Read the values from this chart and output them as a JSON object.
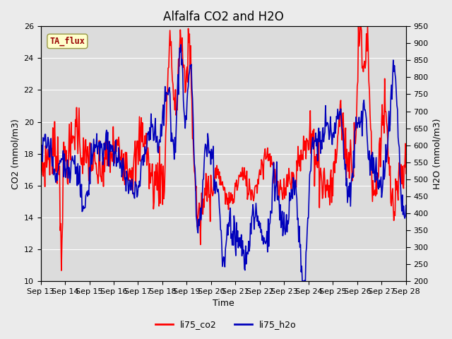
{
  "title": "Alfalfa CO2 and H2O",
  "xlabel": "Time",
  "ylabel_left": "CO2 (mmol/m3)",
  "ylabel_right": "H2O (mmol/m3)",
  "x_start": 13,
  "x_end": 28,
  "x_ticks": [
    13,
    14,
    15,
    16,
    17,
    18,
    19,
    20,
    21,
    22,
    23,
    24,
    25,
    26,
    27,
    28
  ],
  "x_tick_labels": [
    "Sep 13",
    "Sep 14",
    "Sep 15",
    "Sep 16",
    "Sep 17",
    "Sep 18",
    "Sep 19",
    "Sep 20",
    "Sep 21",
    "Sep 22",
    "Sep 23",
    "Sep 24",
    "Sep 25",
    "Sep 26",
    "Sep 27",
    "Sep 28"
  ],
  "ylim_left": [
    10,
    26
  ],
  "ylim_right": [
    200,
    950
  ],
  "yticks_left": [
    10,
    12,
    14,
    16,
    18,
    20,
    22,
    24,
    26
  ],
  "yticks_right": [
    200,
    250,
    300,
    350,
    400,
    450,
    500,
    550,
    600,
    650,
    700,
    750,
    800,
    850,
    900,
    950
  ],
  "co2_color": "#FF0000",
  "h2o_color": "#0000BB",
  "legend_co2": "li75_co2",
  "legend_h2o": "li75_h2o",
  "annotation_text": "TA_flux",
  "annotation_bgcolor": "#FFFFCC",
  "annotation_edgecolor": "#999944",
  "annotation_textcolor": "#990000",
  "axes_bg_color": "#DCDCDC",
  "fig_bg_color": "#EBEBEB",
  "grid_color": "#FFFFFF",
  "linewidth": 1.2,
  "title_fontsize": 12,
  "axis_label_fontsize": 9,
  "tick_fontsize": 8
}
